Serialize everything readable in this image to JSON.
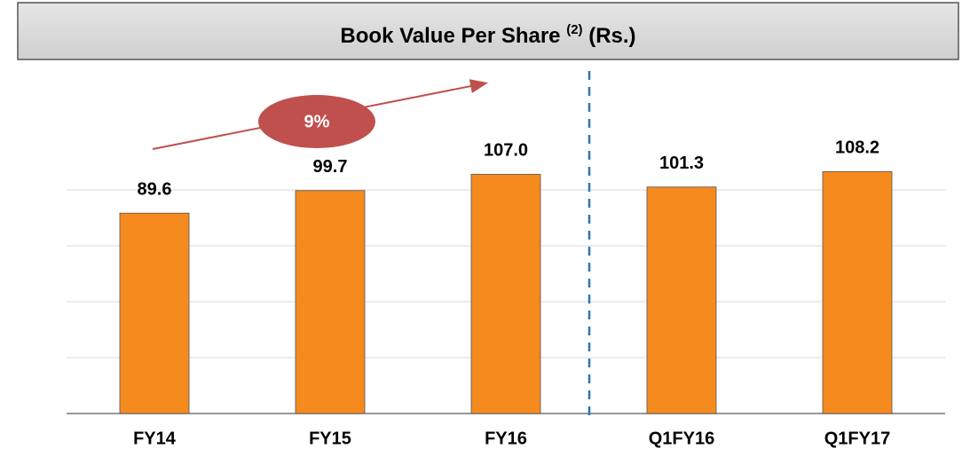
{
  "chart_data": {
    "type": "bar",
    "title": "Book Value Per Share",
    "title_note": "(2)",
    "title_unit": "(Rs.)",
    "categories": [
      "FY14",
      "FY15",
      "FY16",
      "Q1FY16",
      "Q1FY17"
    ],
    "values": [
      89.6,
      99.7,
      107.0,
      101.3,
      108.2
    ],
    "value_labels": [
      "89.6",
      "99.7",
      "107.0",
      "101.3",
      "108.2"
    ],
    "color": "#f58a1f",
    "ylim": [
      0,
      150
    ],
    "yticks": [
      0,
      25,
      50,
      75,
      100
    ],
    "grid": true,
    "annotation": "9%"
  }
}
